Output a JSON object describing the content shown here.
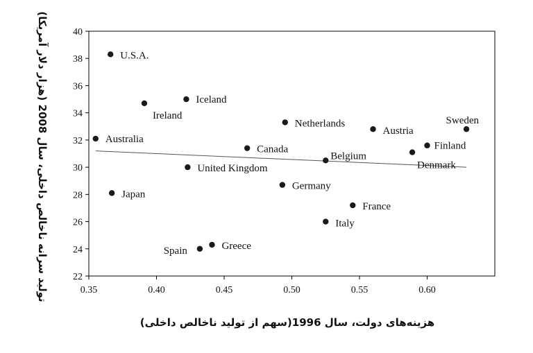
{
  "chart_data": {
    "type": "scatter",
    "title": "",
    "xlabel": "هزینه‌های دولت، سال 1996(سهم از تولید ناخالص داخلی)",
    "ylabel": "تولید سرانه ناخالص داخلی، سال 2008 (هزار دلار آمریکا)",
    "xlim": [
      0.35,
      0.65
    ],
    "ylim": [
      22,
      40
    ],
    "xticks": [
      "0.35",
      "0.40",
      "0.45",
      "0.50",
      "0.55",
      "0.60"
    ],
    "yticks": [
      "22",
      "24",
      "26",
      "28",
      "30",
      "32",
      "34",
      "36",
      "38",
      "40"
    ],
    "grid": false,
    "legend": "none",
    "points": [
      {
        "label": "U.S.A.",
        "x": 0.366,
        "y": 38.3
      },
      {
        "label": "Iceland",
        "x": 0.422,
        "y": 35.0
      },
      {
        "label": "Ireland",
        "x": 0.391,
        "y": 34.7
      },
      {
        "label": "Netherlands",
        "x": 0.495,
        "y": 33.3
      },
      {
        "label": "Austria",
        "x": 0.56,
        "y": 32.8
      },
      {
        "label": "Sweden",
        "x": 0.629,
        "y": 32.8
      },
      {
        "label": "Australia",
        "x": 0.355,
        "y": 32.1
      },
      {
        "label": "Finland",
        "x": 0.6,
        "y": 31.6
      },
      {
        "label": "Canada",
        "x": 0.467,
        "y": 31.4
      },
      {
        "label": "Denmark",
        "x": 0.589,
        "y": 31.1
      },
      {
        "label": "Belgium",
        "x": 0.525,
        "y": 30.5
      },
      {
        "label": "United Kingdom",
        "x": 0.423,
        "y": 30.0
      },
      {
        "label": "Germany",
        "x": 0.493,
        "y": 28.7
      },
      {
        "label": "Japan",
        "x": 0.367,
        "y": 28.1
      },
      {
        "label": "France",
        "x": 0.545,
        "y": 27.2
      },
      {
        "label": "Italy",
        "x": 0.525,
        "y": 26.0
      },
      {
        "label": "Greece",
        "x": 0.441,
        "y": 24.3
      },
      {
        "label": "Spain",
        "x": 0.432,
        "y": 24.0
      }
    ],
    "trendline": {
      "x": [
        0.355,
        0.629
      ],
      "y": [
        31.2,
        30.0
      ]
    },
    "colors": {
      "marker": "#1a1a1a",
      "trendline": "#555555",
      "frame": "#000000"
    }
  }
}
